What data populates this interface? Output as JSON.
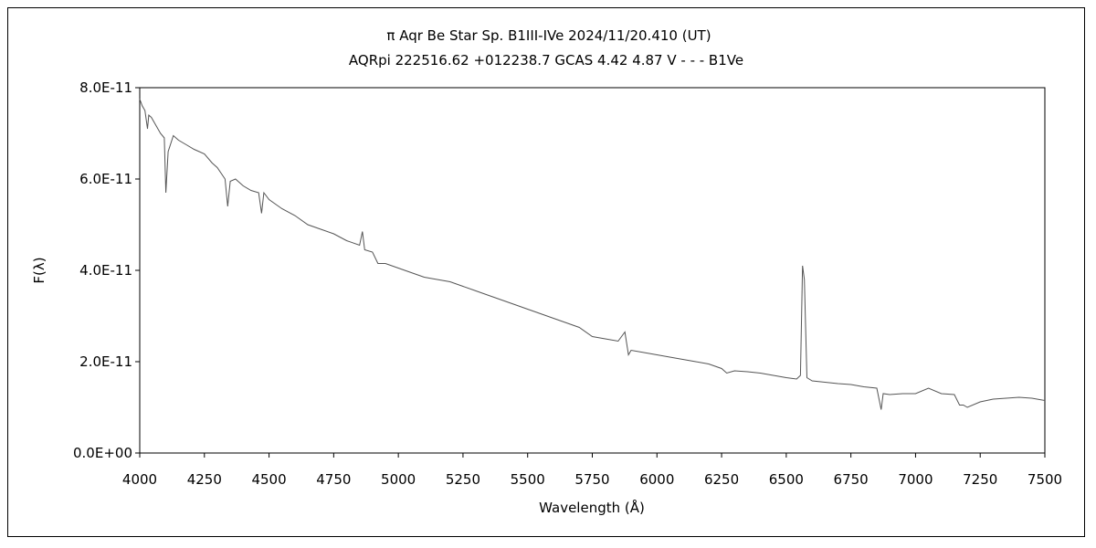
{
  "chart_data": {
    "type": "line",
    "title": "π  Aqr    Be Star    Sp. B1III-IVe    2024/11/20.410 (UT)",
    "subtitle": "AQRpi 222516.62 +012238.7 GCAS 4.42 4.87 V - - - B1Ve",
    "xlabel": "Wavelength (Å)",
    "ylabel": "F(λ)",
    "xlim": [
      4000,
      7500
    ],
    "ylim": [
      0,
      8e-11
    ],
    "x_ticks": [
      4000,
      4250,
      4500,
      4750,
      5000,
      5250,
      5500,
      5750,
      6000,
      6250,
      6500,
      6750,
      7000,
      7250,
      7500
    ],
    "x_tick_labels": [
      "4000",
      "4250",
      "4500",
      "4750",
      "5000",
      "5250",
      "5500",
      "5750",
      "6000",
      "6250",
      "6500",
      "6750",
      "7000",
      "7250",
      "7500"
    ],
    "y_ticks": [
      0,
      2e-11,
      4e-11,
      6e-11,
      8e-11
    ],
    "y_tick_labels": [
      "0.0E+00",
      "2.0E-11",
      "4.0E-11",
      "6.0E-11",
      "8.0E-11"
    ],
    "grid": false,
    "legend": "none",
    "line_color": "#555555",
    "series": [
      {
        "x": [
          4000,
          4010,
          4020,
          4030,
          4035,
          4045,
          4060,
          4080,
          4095,
          4101,
          4110,
          4130,
          4150,
          4180,
          4210,
          4250,
          4280,
          4300,
          4330,
          4340,
          4350,
          4370,
          4400,
          4430,
          4460,
          4471,
          4480,
          4500,
          4550,
          4600,
          4650,
          4700,
          4750,
          4800,
          4850,
          4861,
          4870,
          4900,
          4921,
          4950,
          5000,
          5050,
          5100,
          5150,
          5200,
          5250,
          5300,
          5350,
          5400,
          5450,
          5500,
          5550,
          5600,
          5650,
          5700,
          5750,
          5800,
          5850,
          5876,
          5890,
          5900,
          5950,
          6000,
          6050,
          6100,
          6150,
          6200,
          6250,
          6270,
          6300,
          6350,
          6400,
          6450,
          6500,
          6540,
          6555,
          6563,
          6570,
          6580,
          6600,
          6650,
          6700,
          6750,
          6800,
          6850,
          6867,
          6875,
          6900,
          6950,
          7000,
          7050,
          7100,
          7150,
          7170,
          7185,
          7200,
          7250,
          7300,
          7350,
          7400,
          7450,
          7500
        ],
        "y": [
          7.75e-11,
          7.6e-11,
          7.5e-11,
          7.1e-11,
          7.4e-11,
          7.35e-11,
          7.2e-11,
          7e-11,
          6.9e-11,
          5.7e-11,
          6.6e-11,
          6.95e-11,
          6.85e-11,
          6.75e-11,
          6.65e-11,
          6.55e-11,
          6.35e-11,
          6.25e-11,
          6e-11,
          5.4e-11,
          5.95e-11,
          6e-11,
          5.85e-11,
          5.75e-11,
          5.7e-11,
          5.25e-11,
          5.7e-11,
          5.55e-11,
          5.35e-11,
          5.2e-11,
          5e-11,
          4.9e-11,
          4.8e-11,
          4.65e-11,
          4.55e-11,
          4.85e-11,
          4.45e-11,
          4.4e-11,
          4.15e-11,
          4.15e-11,
          4.05e-11,
          3.95e-11,
          3.85e-11,
          3.8e-11,
          3.75e-11,
          3.65e-11,
          3.55e-11,
          3.45e-11,
          3.35e-11,
          3.25e-11,
          3.15e-11,
          3.05e-11,
          2.95e-11,
          2.85e-11,
          2.75e-11,
          2.55e-11,
          2.5e-11,
          2.45e-11,
          2.65e-11,
          2.15e-11,
          2.25e-11,
          2.2e-11,
          2.15e-11,
          2.1e-11,
          2.05e-11,
          2e-11,
          1.95e-11,
          1.85e-11,
          1.75e-11,
          1.8e-11,
          1.78e-11,
          1.75e-11,
          1.7e-11,
          1.65e-11,
          1.62e-11,
          1.7e-11,
          4.1e-11,
          3.8e-11,
          1.65e-11,
          1.58e-11,
          1.55e-11,
          1.52e-11,
          1.5e-11,
          1.45e-11,
          1.42e-11,
          9.5e-12,
          1.3e-11,
          1.28e-11,
          1.3e-11,
          1.3e-11,
          1.42e-11,
          1.3e-11,
          1.28e-11,
          1.05e-11,
          1.05e-11,
          1e-11,
          1.12e-11,
          1.18e-11,
          1.2e-11,
          1.22e-11,
          1.2e-11,
          1.15e-11
        ]
      }
    ]
  }
}
